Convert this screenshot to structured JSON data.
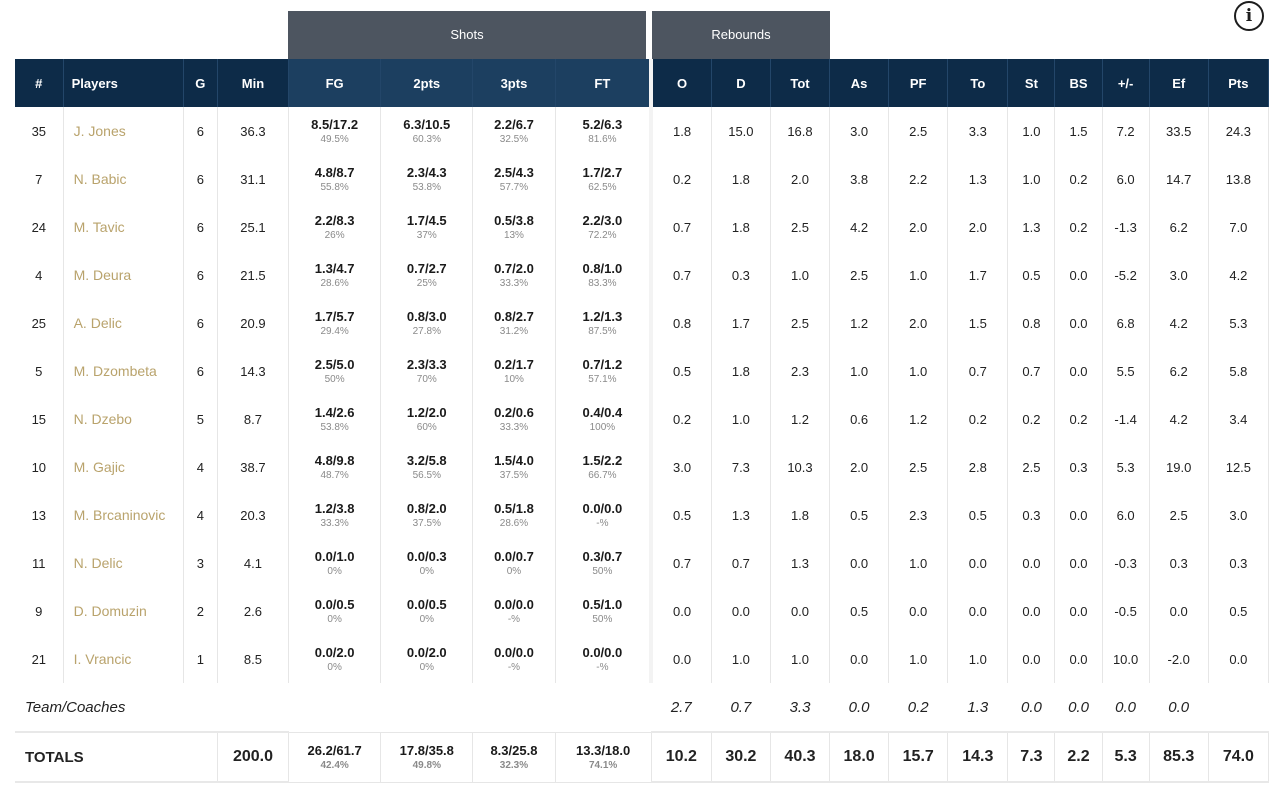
{
  "info_icon": "info-icon",
  "groups": {
    "shots": "Shots",
    "rebounds": "Rebounds"
  },
  "headers": [
    "#",
    "Players",
    "G",
    "Min",
    "FG",
    "2pts",
    "3pts",
    "FT",
    "O",
    "D",
    "Tot",
    "As",
    "PF",
    "To",
    "St",
    "BS",
    "+/-",
    "Ef",
    "Pts"
  ],
  "players": [
    {
      "num": "35",
      "name": "J. Jones",
      "g": "6",
      "min": "36.3",
      "fg": "8.5/17.2",
      "fg_pct": "49.5%",
      "p2": "6.3/10.5",
      "p2_pct": "60.3%",
      "p3": "2.2/6.7",
      "p3_pct": "32.5%",
      "ft": "5.2/6.3",
      "ft_pct": "81.6%",
      "o": "1.8",
      "d": "15.0",
      "tot": "16.8",
      "as": "3.0",
      "pf": "2.5",
      "to": "3.3",
      "st": "1.0",
      "bs": "1.5",
      "pm": "7.2",
      "ef": "33.5",
      "pts": "24.3"
    },
    {
      "num": "7",
      "name": "N. Babic",
      "g": "6",
      "min": "31.1",
      "fg": "4.8/8.7",
      "fg_pct": "55.8%",
      "p2": "2.3/4.3",
      "p2_pct": "53.8%",
      "p3": "2.5/4.3",
      "p3_pct": "57.7%",
      "ft": "1.7/2.7",
      "ft_pct": "62.5%",
      "o": "0.2",
      "d": "1.8",
      "tot": "2.0",
      "as": "3.8",
      "pf": "2.2",
      "to": "1.3",
      "st": "1.0",
      "bs": "0.2",
      "pm": "6.0",
      "ef": "14.7",
      "pts": "13.8"
    },
    {
      "num": "24",
      "name": "M. Tavic",
      "g": "6",
      "min": "25.1",
      "fg": "2.2/8.3",
      "fg_pct": "26%",
      "p2": "1.7/4.5",
      "p2_pct": "37%",
      "p3": "0.5/3.8",
      "p3_pct": "13%",
      "ft": "2.2/3.0",
      "ft_pct": "72.2%",
      "o": "0.7",
      "d": "1.8",
      "tot": "2.5",
      "as": "4.2",
      "pf": "2.0",
      "to": "2.0",
      "st": "1.3",
      "bs": "0.2",
      "pm": "-1.3",
      "ef": "6.2",
      "pts": "7.0"
    },
    {
      "num": "4",
      "name": "M. Deura",
      "g": "6",
      "min": "21.5",
      "fg": "1.3/4.7",
      "fg_pct": "28.6%",
      "p2": "0.7/2.7",
      "p2_pct": "25%",
      "p3": "0.7/2.0",
      "p3_pct": "33.3%",
      "ft": "0.8/1.0",
      "ft_pct": "83.3%",
      "o": "0.7",
      "d": "0.3",
      "tot": "1.0",
      "as": "2.5",
      "pf": "1.0",
      "to": "1.7",
      "st": "0.5",
      "bs": "0.0",
      "pm": "-5.2",
      "ef": "3.0",
      "pts": "4.2"
    },
    {
      "num": "25",
      "name": "A. Delic",
      "g": "6",
      "min": "20.9",
      "fg": "1.7/5.7",
      "fg_pct": "29.4%",
      "p2": "0.8/3.0",
      "p2_pct": "27.8%",
      "p3": "0.8/2.7",
      "p3_pct": "31.2%",
      "ft": "1.2/1.3",
      "ft_pct": "87.5%",
      "o": "0.8",
      "d": "1.7",
      "tot": "2.5",
      "as": "1.2",
      "pf": "2.0",
      "to": "1.5",
      "st": "0.8",
      "bs": "0.0",
      "pm": "6.8",
      "ef": "4.2",
      "pts": "5.3"
    },
    {
      "num": "5",
      "name": "M. Dzombeta",
      "g": "6",
      "min": "14.3",
      "fg": "2.5/5.0",
      "fg_pct": "50%",
      "p2": "2.3/3.3",
      "p2_pct": "70%",
      "p3": "0.2/1.7",
      "p3_pct": "10%",
      "ft": "0.7/1.2",
      "ft_pct": "57.1%",
      "o": "0.5",
      "d": "1.8",
      "tot": "2.3",
      "as": "1.0",
      "pf": "1.0",
      "to": "0.7",
      "st": "0.7",
      "bs": "0.0",
      "pm": "5.5",
      "ef": "6.2",
      "pts": "5.8"
    },
    {
      "num": "15",
      "name": "N. Dzebo",
      "g": "5",
      "min": "8.7",
      "fg": "1.4/2.6",
      "fg_pct": "53.8%",
      "p2": "1.2/2.0",
      "p2_pct": "60%",
      "p3": "0.2/0.6",
      "p3_pct": "33.3%",
      "ft": "0.4/0.4",
      "ft_pct": "100%",
      "o": "0.2",
      "d": "1.0",
      "tot": "1.2",
      "as": "0.6",
      "pf": "1.2",
      "to": "0.2",
      "st": "0.2",
      "bs": "0.2",
      "pm": "-1.4",
      "ef": "4.2",
      "pts": "3.4"
    },
    {
      "num": "10",
      "name": "M. Gajic",
      "g": "4",
      "min": "38.7",
      "fg": "4.8/9.8",
      "fg_pct": "48.7%",
      "p2": "3.2/5.8",
      "p2_pct": "56.5%",
      "p3": "1.5/4.0",
      "p3_pct": "37.5%",
      "ft": "1.5/2.2",
      "ft_pct": "66.7%",
      "o": "3.0",
      "d": "7.3",
      "tot": "10.3",
      "as": "2.0",
      "pf": "2.5",
      "to": "2.8",
      "st": "2.5",
      "bs": "0.3",
      "pm": "5.3",
      "ef": "19.0",
      "pts": "12.5"
    },
    {
      "num": "13",
      "name": "M. Brcaninovic",
      "g": "4",
      "min": "20.3",
      "fg": "1.2/3.8",
      "fg_pct": "33.3%",
      "p2": "0.8/2.0",
      "p2_pct": "37.5%",
      "p3": "0.5/1.8",
      "p3_pct": "28.6%",
      "ft": "0.0/0.0",
      "ft_pct": "-%",
      "o": "0.5",
      "d": "1.3",
      "tot": "1.8",
      "as": "0.5",
      "pf": "2.3",
      "to": "0.5",
      "st": "0.3",
      "bs": "0.0",
      "pm": "6.0",
      "ef": "2.5",
      "pts": "3.0"
    },
    {
      "num": "11",
      "name": "N. Delic",
      "g": "3",
      "min": "4.1",
      "fg": "0.0/1.0",
      "fg_pct": "0%",
      "p2": "0.0/0.3",
      "p2_pct": "0%",
      "p3": "0.0/0.7",
      "p3_pct": "0%",
      "ft": "0.3/0.7",
      "ft_pct": "50%",
      "o": "0.7",
      "d": "0.7",
      "tot": "1.3",
      "as": "0.0",
      "pf": "1.0",
      "to": "0.0",
      "st": "0.0",
      "bs": "0.0",
      "pm": "-0.3",
      "ef": "0.3",
      "pts": "0.3"
    },
    {
      "num": "9",
      "name": "D. Domuzin",
      "g": "2",
      "min": "2.6",
      "fg": "0.0/0.5",
      "fg_pct": "0%",
      "p2": "0.0/0.5",
      "p2_pct": "0%",
      "p3": "0.0/0.0",
      "p3_pct": "-%",
      "ft": "0.5/1.0",
      "ft_pct": "50%",
      "o": "0.0",
      "d": "0.0",
      "tot": "0.0",
      "as": "0.5",
      "pf": "0.0",
      "to": "0.0",
      "st": "0.0",
      "bs": "0.0",
      "pm": "-0.5",
      "ef": "0.0",
      "pts": "0.5"
    },
    {
      "num": "21",
      "name": "I. Vrancic",
      "g": "1",
      "min": "8.5",
      "fg": "0.0/2.0",
      "fg_pct": "0%",
      "p2": "0.0/2.0",
      "p2_pct": "0%",
      "p3": "0.0/0.0",
      "p3_pct": "-%",
      "ft": "0.0/0.0",
      "ft_pct": "-%",
      "o": "0.0",
      "d": "1.0",
      "tot": "1.0",
      "as": "0.0",
      "pf": "1.0",
      "to": "1.0",
      "st": "0.0",
      "bs": "0.0",
      "pm": "10.0",
      "ef": "-2.0",
      "pts": "0.0"
    }
  ],
  "team": {
    "label": "Team/Coaches",
    "o": "2.7",
    "d": "0.7",
    "tot": "3.3",
    "as": "0.0",
    "pf": "0.2",
    "to": "1.3",
    "st": "0.0",
    "bs": "0.0",
    "pm": "0.0",
    "ef": "0.0"
  },
  "totals": {
    "label": "TOTALS",
    "min": "200.0",
    "fg": "26.2/61.7",
    "fg_pct": "42.4%",
    "p2": "17.8/35.8",
    "p2_pct": "49.8%",
    "p3": "8.3/25.8",
    "p3_pct": "32.3%",
    "ft": "13.3/18.0",
    "ft_pct": "74.1%",
    "o": "10.2",
    "d": "30.2",
    "tot": "40.3",
    "as": "18.0",
    "pf": "15.7",
    "to": "14.3",
    "st": "7.3",
    "bs": "2.2",
    "pm": "5.3",
    "ef": "85.3",
    "pts": "74.0"
  }
}
